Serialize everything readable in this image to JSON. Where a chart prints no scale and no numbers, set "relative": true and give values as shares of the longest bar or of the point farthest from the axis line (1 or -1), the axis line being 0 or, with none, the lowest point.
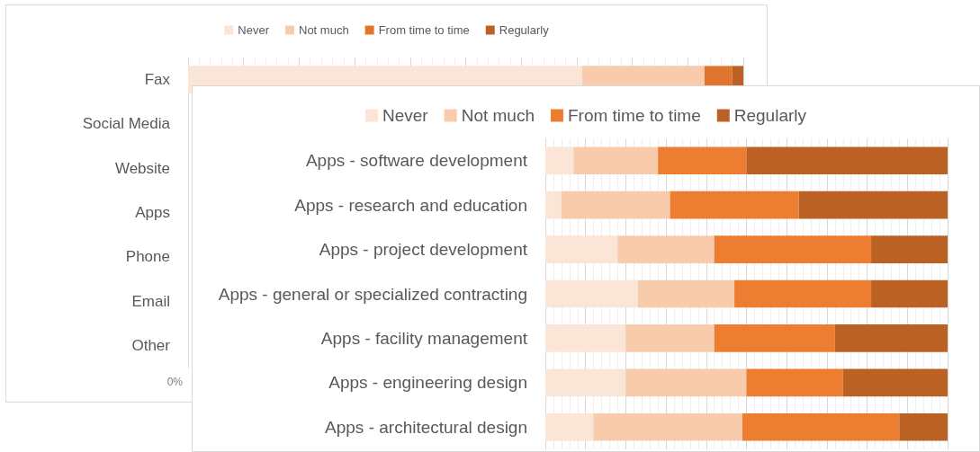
{
  "chart_data": [
    {
      "type": "bar",
      "orientation": "horizontal",
      "stacked": true,
      "relative": true,
      "grid": true,
      "legend": "top",
      "categories": [
        "Fax",
        "Social Media",
        "Website",
        "Apps",
        "Phone",
        "Email",
        "Other"
      ],
      "series": [
        {
          "name": "Never",
          "color": "#fbe5d6",
          "values": [
            0.71,
            null,
            null,
            null,
            null,
            null,
            null
          ]
        },
        {
          "name": "Not much",
          "color": "#f8cbad",
          "values": [
            0.22,
            null,
            null,
            null,
            null,
            null,
            null
          ]
        },
        {
          "name": "From time to time",
          "color": "#e0762d",
          "values": [
            0.05,
            null,
            null,
            null,
            null,
            null,
            null
          ]
        },
        {
          "name": "Regularly",
          "color": "#bc6124",
          "values": [
            0.02,
            null,
            null,
            null,
            null,
            null,
            null
          ]
        }
      ],
      "annotations": [
        "0%"
      ]
    },
    {
      "type": "bar",
      "orientation": "horizontal",
      "stacked": true,
      "relative": true,
      "grid": true,
      "legend": "top",
      "categories": [
        "Apps - software development",
        "Apps - research and education",
        "Apps - project development",
        "Apps - general or specialized contracting",
        "Apps - facility management",
        "Apps - engineering design",
        "Apps - architectural design"
      ],
      "series": [
        {
          "name": "Never",
          "color": "#fbe5d6",
          "values": [
            0.07,
            0.04,
            0.18,
            0.23,
            0.2,
            0.2,
            0.12
          ]
        },
        {
          "name": "Not much",
          "color": "#f8cbad",
          "values": [
            0.21,
            0.27,
            0.24,
            0.24,
            0.22,
            0.3,
            0.37
          ]
        },
        {
          "name": "From time to time",
          "color": "#ed7d31",
          "values": [
            0.22,
            0.32,
            0.39,
            0.34,
            0.3,
            0.24,
            0.39
          ]
        },
        {
          "name": "Regularly",
          "color": "#bc6124",
          "values": [
            0.5,
            0.37,
            0.19,
            0.19,
            0.28,
            0.26,
            0.12
          ]
        }
      ]
    }
  ]
}
